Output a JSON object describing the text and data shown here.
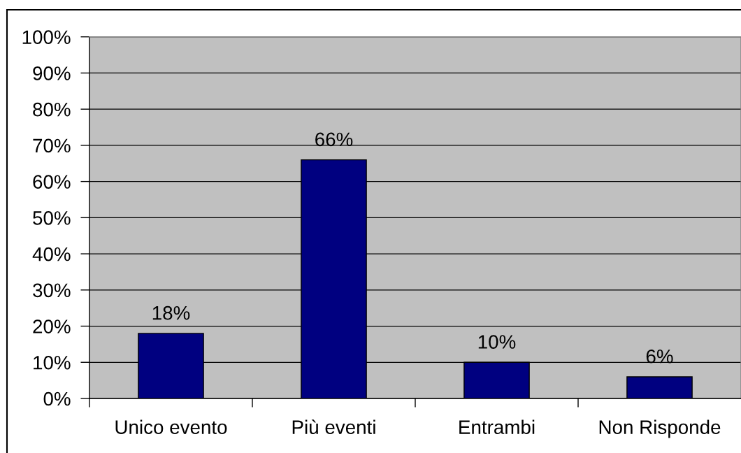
{
  "chart_data": {
    "type": "bar",
    "categories": [
      "Unico evento",
      "Più eventi",
      "Entrambi",
      "Non Risponde"
    ],
    "values": [
      18,
      66,
      10,
      6
    ],
    "color": "#000080",
    "value_labels": [
      "18%",
      "66%",
      "10%",
      "6%"
    ],
    "ylim": [
      0,
      100
    ],
    "yticks": [
      {
        "value": 0,
        "label": "0%"
      },
      {
        "value": 10,
        "label": "10%"
      },
      {
        "value": 20,
        "label": "20%"
      },
      {
        "value": 30,
        "label": "30%"
      },
      {
        "value": 40,
        "label": "40%"
      },
      {
        "value": 50,
        "label": "50%"
      },
      {
        "value": 60,
        "label": "60%"
      },
      {
        "value": 70,
        "label": "70%"
      },
      {
        "value": 80,
        "label": "80%"
      },
      {
        "value": 90,
        "label": "90%"
      },
      {
        "value": 100,
        "label": "100%"
      }
    ],
    "grid": "y"
  }
}
